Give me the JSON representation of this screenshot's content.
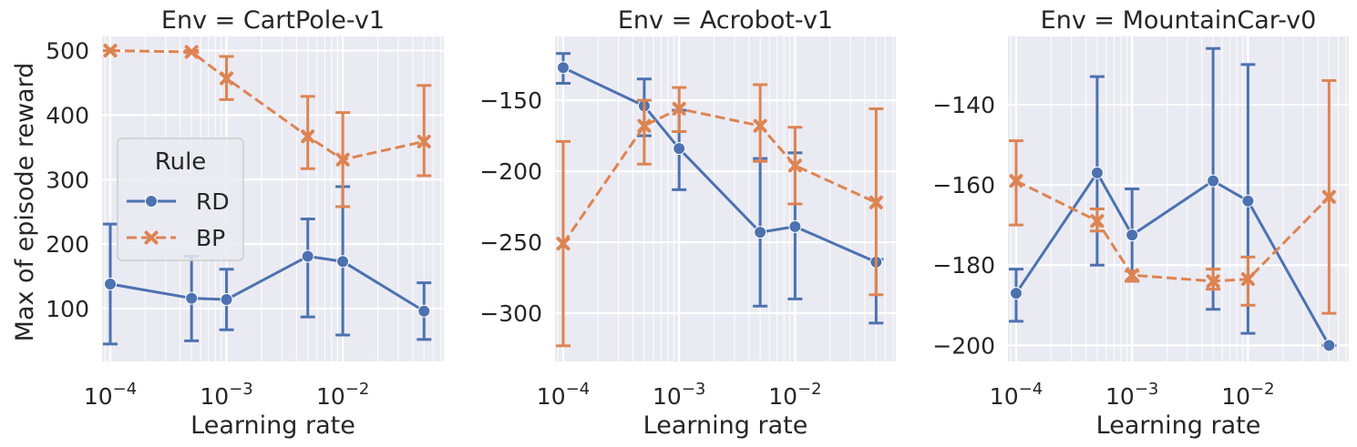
{
  "figure": {
    "ylabel": "Max of episode reward",
    "legend": {
      "title": "Rule",
      "placement": "center-left of first panel"
    }
  },
  "style": {
    "background": "#ffffff",
    "panel_background": "#eaeaf2",
    "grid_color": "#ffffff",
    "text_color": "#262626",
    "series_colors": {
      "RD": "#4c72b0",
      "BP": "#dd8452"
    }
  },
  "chart_data": [
    {
      "type": "line",
      "title": "Env = CartPole-v1",
      "xlabel": "Learning rate",
      "ylabel": "Max of episode reward",
      "xscale": "log",
      "xlim": [
        8.5e-05,
        0.074
      ],
      "ylim": [
        18,
        522
      ],
      "xticks": [
        0.0001,
        0.001,
        0.01
      ],
      "xtick_labels": [
        {
          "base": "10",
          "exp": "−4"
        },
        {
          "base": "10",
          "exp": "−3"
        },
        {
          "base": "10",
          "exp": "−2"
        }
      ],
      "yticks": [
        100,
        200,
        300,
        400,
        500
      ],
      "ytick_labels": [
        "100",
        "200",
        "300",
        "400",
        "500"
      ],
      "grid": true,
      "show_legend": true,
      "series": [
        {
          "name": "RD",
          "marker": "o",
          "linestyle": "solid",
          "x": [
            0.0001,
            0.0005,
            0.001,
            0.005,
            0.01,
            0.05
          ],
          "y": [
            138,
            116,
            114,
            181,
            173,
            96
          ],
          "err_low": [
            45,
            50,
            67,
            87,
            59,
            52
          ],
          "err_high": [
            231,
            181,
            161,
            239,
            289,
            140
          ]
        },
        {
          "name": "BP",
          "marker": "x",
          "linestyle": "dashed",
          "x": [
            0.0001,
            0.0005,
            0.001,
            0.005,
            0.01,
            0.05
          ],
          "y": [
            500,
            498,
            457,
            367,
            331,
            359
          ],
          "err_low": [
            500,
            497,
            424,
            317,
            258,
            306
          ],
          "err_high": [
            500,
            500,
            491,
            429,
            404,
            446
          ]
        }
      ]
    },
    {
      "type": "line",
      "title": "Env = Acrobot-v1",
      "xlabel": "Learning rate",
      "ylabel": "",
      "xscale": "log",
      "xlim": [
        8.5e-05,
        0.074
      ],
      "ylim": [
        -334,
        -105
      ],
      "xticks": [
        0.0001,
        0.001,
        0.01
      ],
      "xtick_labels": [
        {
          "base": "10",
          "exp": "−4"
        },
        {
          "base": "10",
          "exp": "−3"
        },
        {
          "base": "10",
          "exp": "−2"
        }
      ],
      "yticks": [
        -300,
        -250,
        -200,
        -150
      ],
      "ytick_labels": [
        "−300",
        "−250",
        "−200",
        "−150"
      ],
      "grid": true,
      "show_legend": false,
      "series": [
        {
          "name": "RD",
          "marker": "o",
          "linestyle": "solid",
          "x": [
            0.0001,
            0.0005,
            0.001,
            0.005,
            0.01,
            0.05
          ],
          "y": [
            -127,
            -154,
            -184,
            -243,
            -239,
            -264
          ],
          "err_low": [
            -138,
            -175,
            -213,
            -295,
            -290,
            -307
          ],
          "err_high": [
            -117,
            -135,
            -157,
            -191,
            -187,
            -262
          ]
        },
        {
          "name": "BP",
          "marker": "x",
          "linestyle": "dashed",
          "x": [
            0.0001,
            0.0005,
            0.001,
            0.005,
            0.01,
            0.05
          ],
          "y": [
            -251,
            -168,
            -156,
            -168,
            -196,
            -222
          ],
          "err_low": [
            -323,
            -195,
            -172,
            -193,
            -223,
            -287
          ],
          "err_high": [
            -179,
            -150,
            -141,
            -139,
            -169,
            -156
          ]
        }
      ]
    },
    {
      "type": "line",
      "title": "Env = MountainCar-v0",
      "xlabel": "Learning rate",
      "ylabel": "",
      "xscale": "log",
      "xlim": [
        8.5e-05,
        0.074
      ],
      "ylim": [
        -204,
        -123
      ],
      "xticks": [
        0.0001,
        0.001,
        0.01
      ],
      "xtick_labels": [
        {
          "base": "10",
          "exp": "−4"
        },
        {
          "base": "10",
          "exp": "−3"
        },
        {
          "base": "10",
          "exp": "−2"
        }
      ],
      "yticks": [
        -200,
        -180,
        -160,
        -140
      ],
      "ytick_labels": [
        "−200",
        "−180",
        "−160",
        "−140"
      ],
      "grid": true,
      "show_legend": false,
      "series": [
        {
          "name": "RD",
          "marker": "o",
          "linestyle": "solid",
          "x": [
            0.0001,
            0.0005,
            0.001,
            0.005,
            0.01,
            0.05
          ],
          "y": [
            -187,
            -157,
            -172.5,
            -159,
            -164,
            -200
          ],
          "err_low": [
            -194,
            -180,
            -184,
            -191,
            -197,
            -200
          ],
          "err_high": [
            -181,
            -133,
            -161,
            -126,
            -130,
            -200
          ]
        },
        {
          "name": "BP",
          "marker": "x",
          "linestyle": "dashed",
          "x": [
            0.0001,
            0.0005,
            0.001,
            0.005,
            0.01,
            0.05
          ],
          "y": [
            -159,
            -169,
            -182.5,
            -184,
            -183.5,
            -163
          ],
          "err_low": [
            -170,
            -171.5,
            -184,
            -186,
            -190,
            -192
          ],
          "err_high": [
            -149,
            -166,
            -181.5,
            -181,
            -178,
            -134
          ]
        }
      ]
    }
  ]
}
